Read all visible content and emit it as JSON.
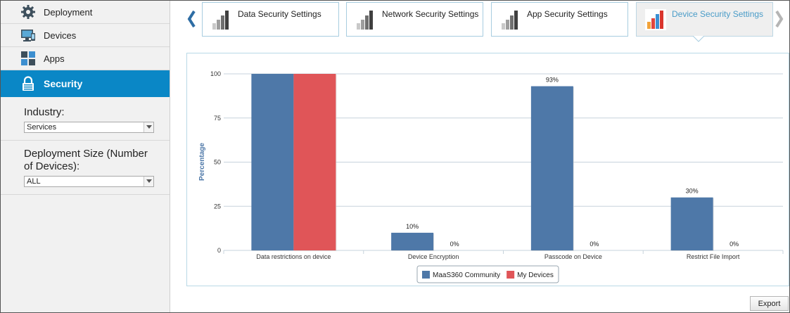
{
  "sidebar": {
    "items": [
      {
        "label": "Deployment",
        "icon": "gear-icon"
      },
      {
        "label": "Devices",
        "icon": "monitor-icon"
      },
      {
        "label": "Apps",
        "icon": "apps-grid-icon"
      },
      {
        "label": "Security",
        "icon": "lock-icon",
        "active": true
      }
    ],
    "industry": {
      "label": "Industry:",
      "value": "Services"
    },
    "deployment_size": {
      "label_line1": "Deployment Size (Number",
      "label_line2": "of Devices):",
      "value": "ALL"
    }
  },
  "tabs": [
    {
      "label": "Data Security Settings",
      "icon": "bar-chart-gray-icon"
    },
    {
      "label": "Network Security Settings",
      "icon": "bar-chart-gray-icon"
    },
    {
      "label": "App Security Settings",
      "icon": "bar-chart-gray-icon"
    },
    {
      "label": "Device Security Settings",
      "icon": "bar-chart-color-icon",
      "active": true
    }
  ],
  "chart_data": {
    "type": "bar",
    "categories": [
      "Data restrictions on device",
      "Device Encryption",
      "Passcode on Device",
      "Restrict File Import"
    ],
    "series": [
      {
        "name": "MaaS360 Community",
        "values": [
          100,
          10,
          93,
          30
        ],
        "color": "#4e78a8"
      },
      {
        "name": "My Devices",
        "values": [
          100,
          0,
          0,
          0
        ],
        "color": "#e05558"
      }
    ],
    "data_labels": [
      [
        "",
        "10%",
        "93%",
        "30%"
      ],
      [
        "",
        "0%",
        "0%",
        "0%"
      ]
    ],
    "ylabel": "Percentage",
    "yticks": [
      "0",
      "25",
      "50",
      "75",
      "100"
    ],
    "ylim": [
      0,
      100
    ],
    "grid": true,
    "legend": "bottom-center"
  },
  "actions": {
    "export_label": "Export"
  },
  "colors": {
    "accent": "#0a87c6",
    "tab_active_text": "#4a9cc8"
  }
}
